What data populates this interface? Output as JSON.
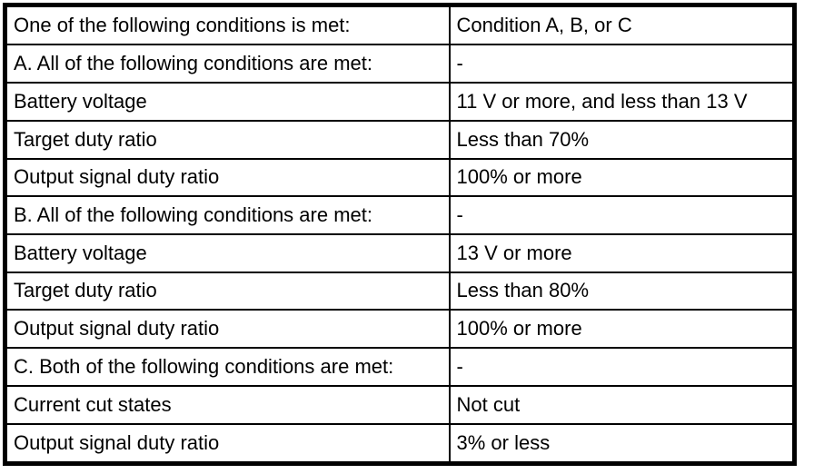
{
  "table": {
    "columns": [
      "condition_label",
      "condition_value"
    ],
    "rows": [
      {
        "label": "One of the following conditions is met:",
        "value": "Condition A, B, or C"
      },
      {
        "label": "A. All of the following conditions are met:",
        "value": "-"
      },
      {
        "label": "Battery voltage",
        "value": "11 V or more, and less than 13 V"
      },
      {
        "label": "Target duty ratio",
        "value": "Less than 70%"
      },
      {
        "label": "Output signal duty ratio",
        "value": "100% or more"
      },
      {
        "label": "B. All of the following conditions are met:",
        "value": "-"
      },
      {
        "label": "Battery voltage",
        "value": "13 V or more"
      },
      {
        "label": "Target duty ratio",
        "value": "Less than 80%"
      },
      {
        "label": "Output signal duty ratio",
        "value": "100% or more"
      },
      {
        "label": "C. Both of the following conditions are met:",
        "value": "-"
      },
      {
        "label": "Current cut states",
        "value": "Not cut"
      },
      {
        "label": "Output signal duty ratio",
        "value": "3% or less"
      }
    ],
    "colors": {
      "border": "#000000",
      "text": "#000000",
      "background": "#ffffff"
    }
  }
}
